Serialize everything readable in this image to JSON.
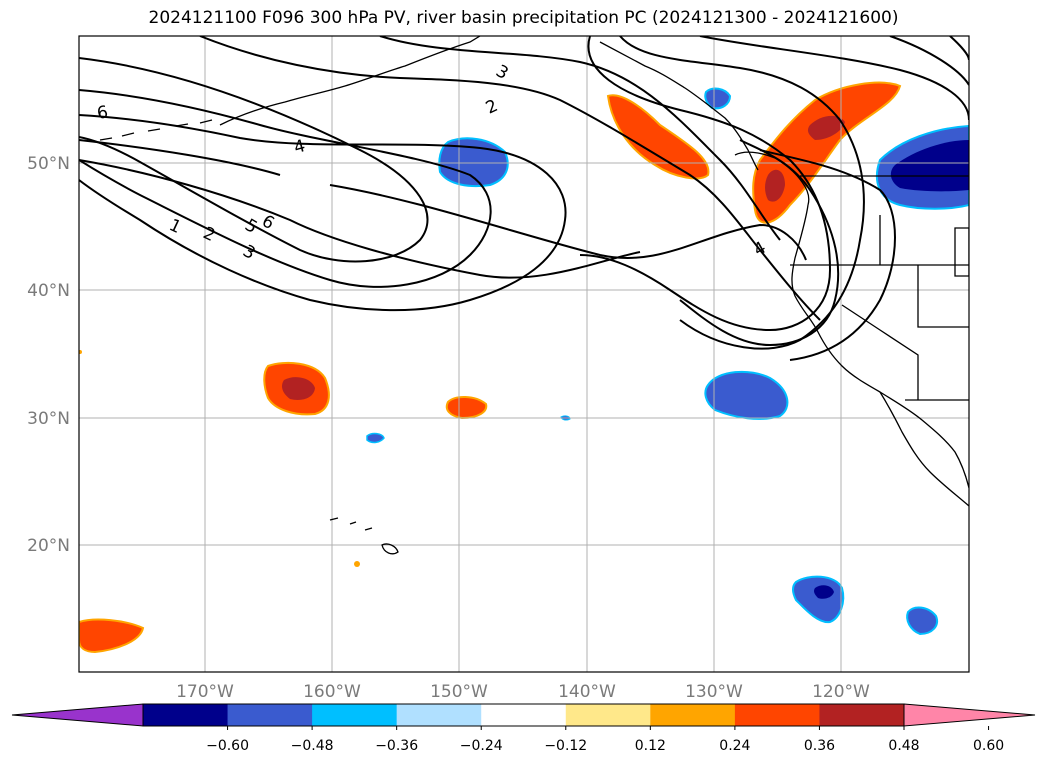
{
  "title": "2024121100 F096 300 hPa PV, river basin precipitation PC (2024121300 - 2024121600)",
  "map": {
    "projection": "lat-lon",
    "gridlines": true,
    "lon_labels": [
      "170°W",
      "160°W",
      "150°W",
      "140°W",
      "130°W",
      "120°W"
    ],
    "lat_labels": [
      "50°N",
      "40°N",
      "30°N",
      "20°N"
    ],
    "pv_contour_labels": [
      "6",
      "3",
      "2",
      "4",
      "1",
      "2",
      "5",
      "6",
      "3",
      "4"
    ],
    "coastline_color": "#000000",
    "gridline_color": "#b0b0b0"
  },
  "colorbar": {
    "extend": "both",
    "ticks": [
      "−0.60",
      "−0.48",
      "−0.36",
      "−0.24",
      "−0.12",
      "0.12",
      "0.24",
      "0.36",
      "0.48",
      "0.60"
    ],
    "colors": [
      "#9933cc",
      "#00008b",
      "#3a5bcf",
      "#00bfff",
      "#b0e0ff",
      "#ffffff",
      "#ffe88a",
      "#ffa500",
      "#ff4500",
      "#b22222",
      "#ff85a8"
    ]
  }
}
